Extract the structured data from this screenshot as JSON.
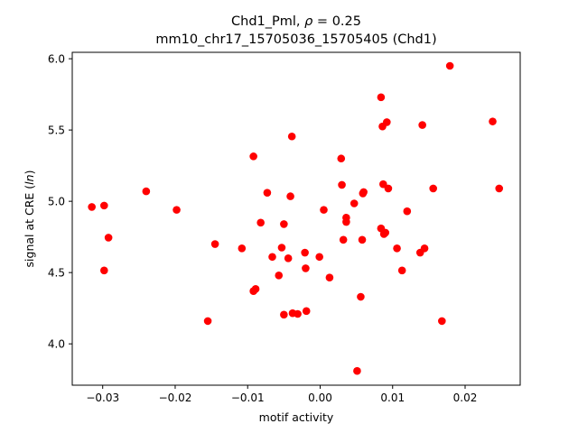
{
  "chart_data": {
    "type": "scatter",
    "title_line1_prefix": "Chd1_Pml, ",
    "title_line1_rho": "ρ",
    "title_line1_suffix": " = 0.25",
    "title_line2": "mm10_chr17_15705036_15705405 (Chd1)",
    "xlabel": "motif activity",
    "ylabel_prefix": "signal at CRE (",
    "ylabel_italic": "ln",
    "ylabel_suffix": ")",
    "xlim": [
      -0.0342,
      0.0276
    ],
    "ylim": [
      3.71,
      6.045
    ],
    "xticks": [
      -0.03,
      -0.02,
      -0.01,
      0.0,
      0.01,
      0.02
    ],
    "xtick_labels": [
      "−0.03",
      "−0.02",
      "−0.01",
      "0.00",
      "0.01",
      "0.02"
    ],
    "yticks": [
      4.0,
      4.5,
      5.0,
      5.5,
      6.0
    ],
    "ytick_labels": [
      "4.0",
      "4.5",
      "5.0",
      "5.5",
      "6.0"
    ],
    "grid": false,
    "marker_color": "#ff0000",
    "points": [
      {
        "x": -0.0315,
        "y": 4.96
      },
      {
        "x": -0.0298,
        "y": 4.97
      },
      {
        "x": -0.0292,
        "y": 4.745
      },
      {
        "x": -0.0298,
        "y": 4.515
      },
      {
        "x": -0.024,
        "y": 5.07
      },
      {
        "x": -0.0198,
        "y": 4.94
      },
      {
        "x": -0.0155,
        "y": 4.16
      },
      {
        "x": -0.0145,
        "y": 4.7
      },
      {
        "x": -0.0108,
        "y": 4.67
      },
      {
        "x": -0.0092,
        "y": 5.315
      },
      {
        "x": -0.0092,
        "y": 4.37
      },
      {
        "x": -0.0089,
        "y": 4.385
      },
      {
        "x": -0.0082,
        "y": 4.85
      },
      {
        "x": -0.0073,
        "y": 5.06
      },
      {
        "x": -0.0066,
        "y": 4.61
      },
      {
        "x": -0.0057,
        "y": 4.48
      },
      {
        "x": -0.0053,
        "y": 4.675
      },
      {
        "x": -0.005,
        "y": 4.84
      },
      {
        "x": -0.005,
        "y": 4.205
      },
      {
        "x": -0.0044,
        "y": 4.6
      },
      {
        "x": -0.0041,
        "y": 5.035
      },
      {
        "x": -0.0039,
        "y": 5.455
      },
      {
        "x": -0.0038,
        "y": 4.215
      },
      {
        "x": -0.0031,
        "y": 4.21
      },
      {
        "x": -0.0021,
        "y": 4.64
      },
      {
        "x": -0.002,
        "y": 4.53
      },
      {
        "x": -0.0019,
        "y": 4.23
      },
      {
        "x": -0.0001,
        "y": 4.61
      },
      {
        "x": 0.0005,
        "y": 4.94
      },
      {
        "x": 0.0013,
        "y": 4.465
      },
      {
        "x": 0.0029,
        "y": 5.3
      },
      {
        "x": 0.003,
        "y": 5.115
      },
      {
        "x": 0.0032,
        "y": 4.73
      },
      {
        "x": 0.0036,
        "y": 4.885
      },
      {
        "x": 0.0036,
        "y": 4.855
      },
      {
        "x": 0.0047,
        "y": 4.985
      },
      {
        "x": 0.0051,
        "y": 3.81
      },
      {
        "x": 0.0056,
        "y": 4.33
      },
      {
        "x": 0.0058,
        "y": 4.73
      },
      {
        "x": 0.0059,
        "y": 5.055
      },
      {
        "x": 0.006,
        "y": 5.065
      },
      {
        "x": 0.0084,
        "y": 5.73
      },
      {
        "x": 0.0084,
        "y": 4.81
      },
      {
        "x": 0.0086,
        "y": 5.525
      },
      {
        "x": 0.0087,
        "y": 5.12
      },
      {
        "x": 0.0088,
        "y": 4.77
      },
      {
        "x": 0.009,
        "y": 4.78
      },
      {
        "x": 0.0092,
        "y": 5.555
      },
      {
        "x": 0.0094,
        "y": 5.09
      },
      {
        "x": 0.0106,
        "y": 4.67
      },
      {
        "x": 0.0113,
        "y": 4.515
      },
      {
        "x": 0.012,
        "y": 4.93
      },
      {
        "x": 0.0138,
        "y": 4.64
      },
      {
        "x": 0.0141,
        "y": 5.535
      },
      {
        "x": 0.0144,
        "y": 4.67
      },
      {
        "x": 0.0156,
        "y": 5.09
      },
      {
        "x": 0.0168,
        "y": 4.16
      },
      {
        "x": 0.0179,
        "y": 5.95
      },
      {
        "x": 0.0238,
        "y": 5.56
      },
      {
        "x": 0.0247,
        "y": 5.09
      }
    ]
  }
}
